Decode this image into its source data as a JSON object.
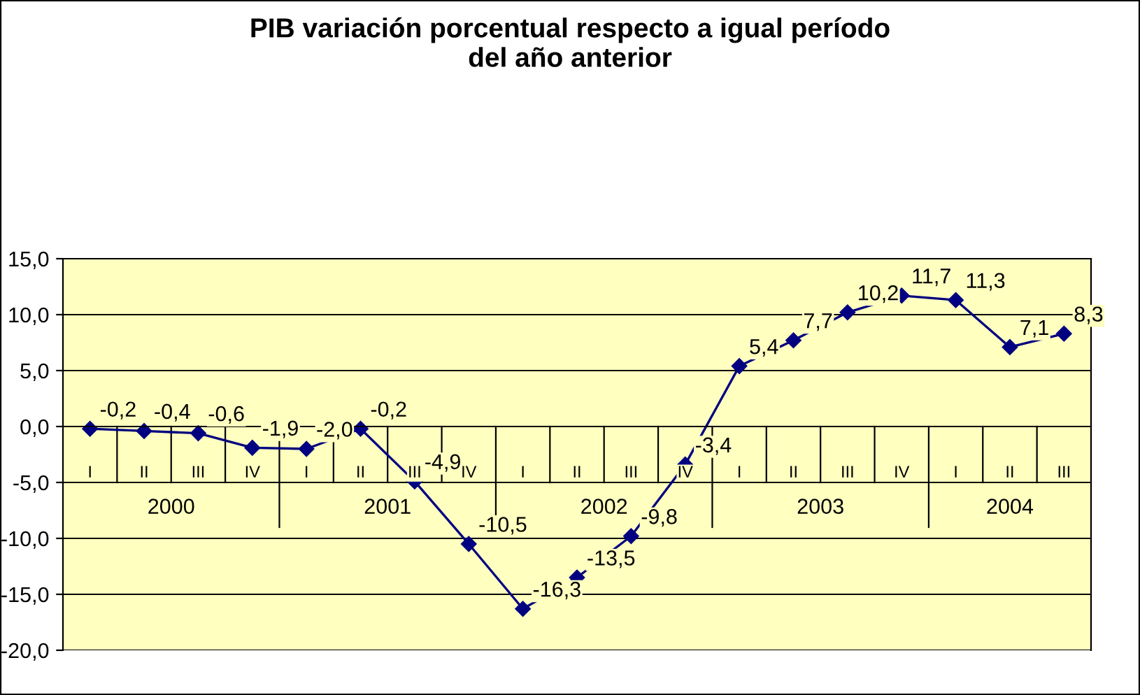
{
  "chart_data": {
    "type": "line",
    "title": "PIB variación porcentual respecto a igual período\ndel año anterior",
    "categories": [
      "I",
      "II",
      "III",
      "IV",
      "I",
      "II",
      "III",
      "IV",
      "I",
      "II",
      "III",
      "IV",
      "I",
      "II",
      "III",
      "IV",
      "I",
      "II",
      "III"
    ],
    "series": [
      {
        "color": "#000080",
        "values": [
          -0.2,
          -0.4,
          -0.6,
          -1.9,
          -2.0,
          -0.2,
          -4.9,
          -10.5,
          -16.3,
          -13.5,
          -9.8,
          -3.4,
          5.4,
          7.7,
          10.2,
          11.7,
          11.3,
          7.1,
          8.3
        ],
        "value_labels": [
          "-0,2",
          "-0,4",
          "-0,6",
          "-1,9",
          "-2,0",
          "-0,2",
          "-4,9",
          "-10,5",
          "-16,3",
          "-13,5",
          "-9,8",
          "-3,4",
          "5,4",
          "7,7",
          "10,2",
          "11,7",
          "11,3",
          "7,1",
          "8,3"
        ]
      }
    ],
    "annotations": [
      "2000",
      "2001",
      "2002",
      "2003",
      "2004"
    ],
    "ylim": [
      -20,
      15
    ],
    "yticks": [
      {
        "value": -20,
        "label": "-20,0"
      },
      {
        "value": -15,
        "label": "-15,0"
      },
      {
        "value": -10,
        "label": "-10,0"
      },
      {
        "value": -5,
        "label": "-5,0"
      },
      {
        "value": 0,
        "label": "0,0"
      },
      {
        "value": 5,
        "label": "5,0"
      },
      {
        "value": 10,
        "label": "10,0"
      },
      {
        "value": 15,
        "label": "15,0"
      }
    ],
    "grid": "y",
    "marker": "diamond",
    "line_style": "solid",
    "legend": false
  }
}
